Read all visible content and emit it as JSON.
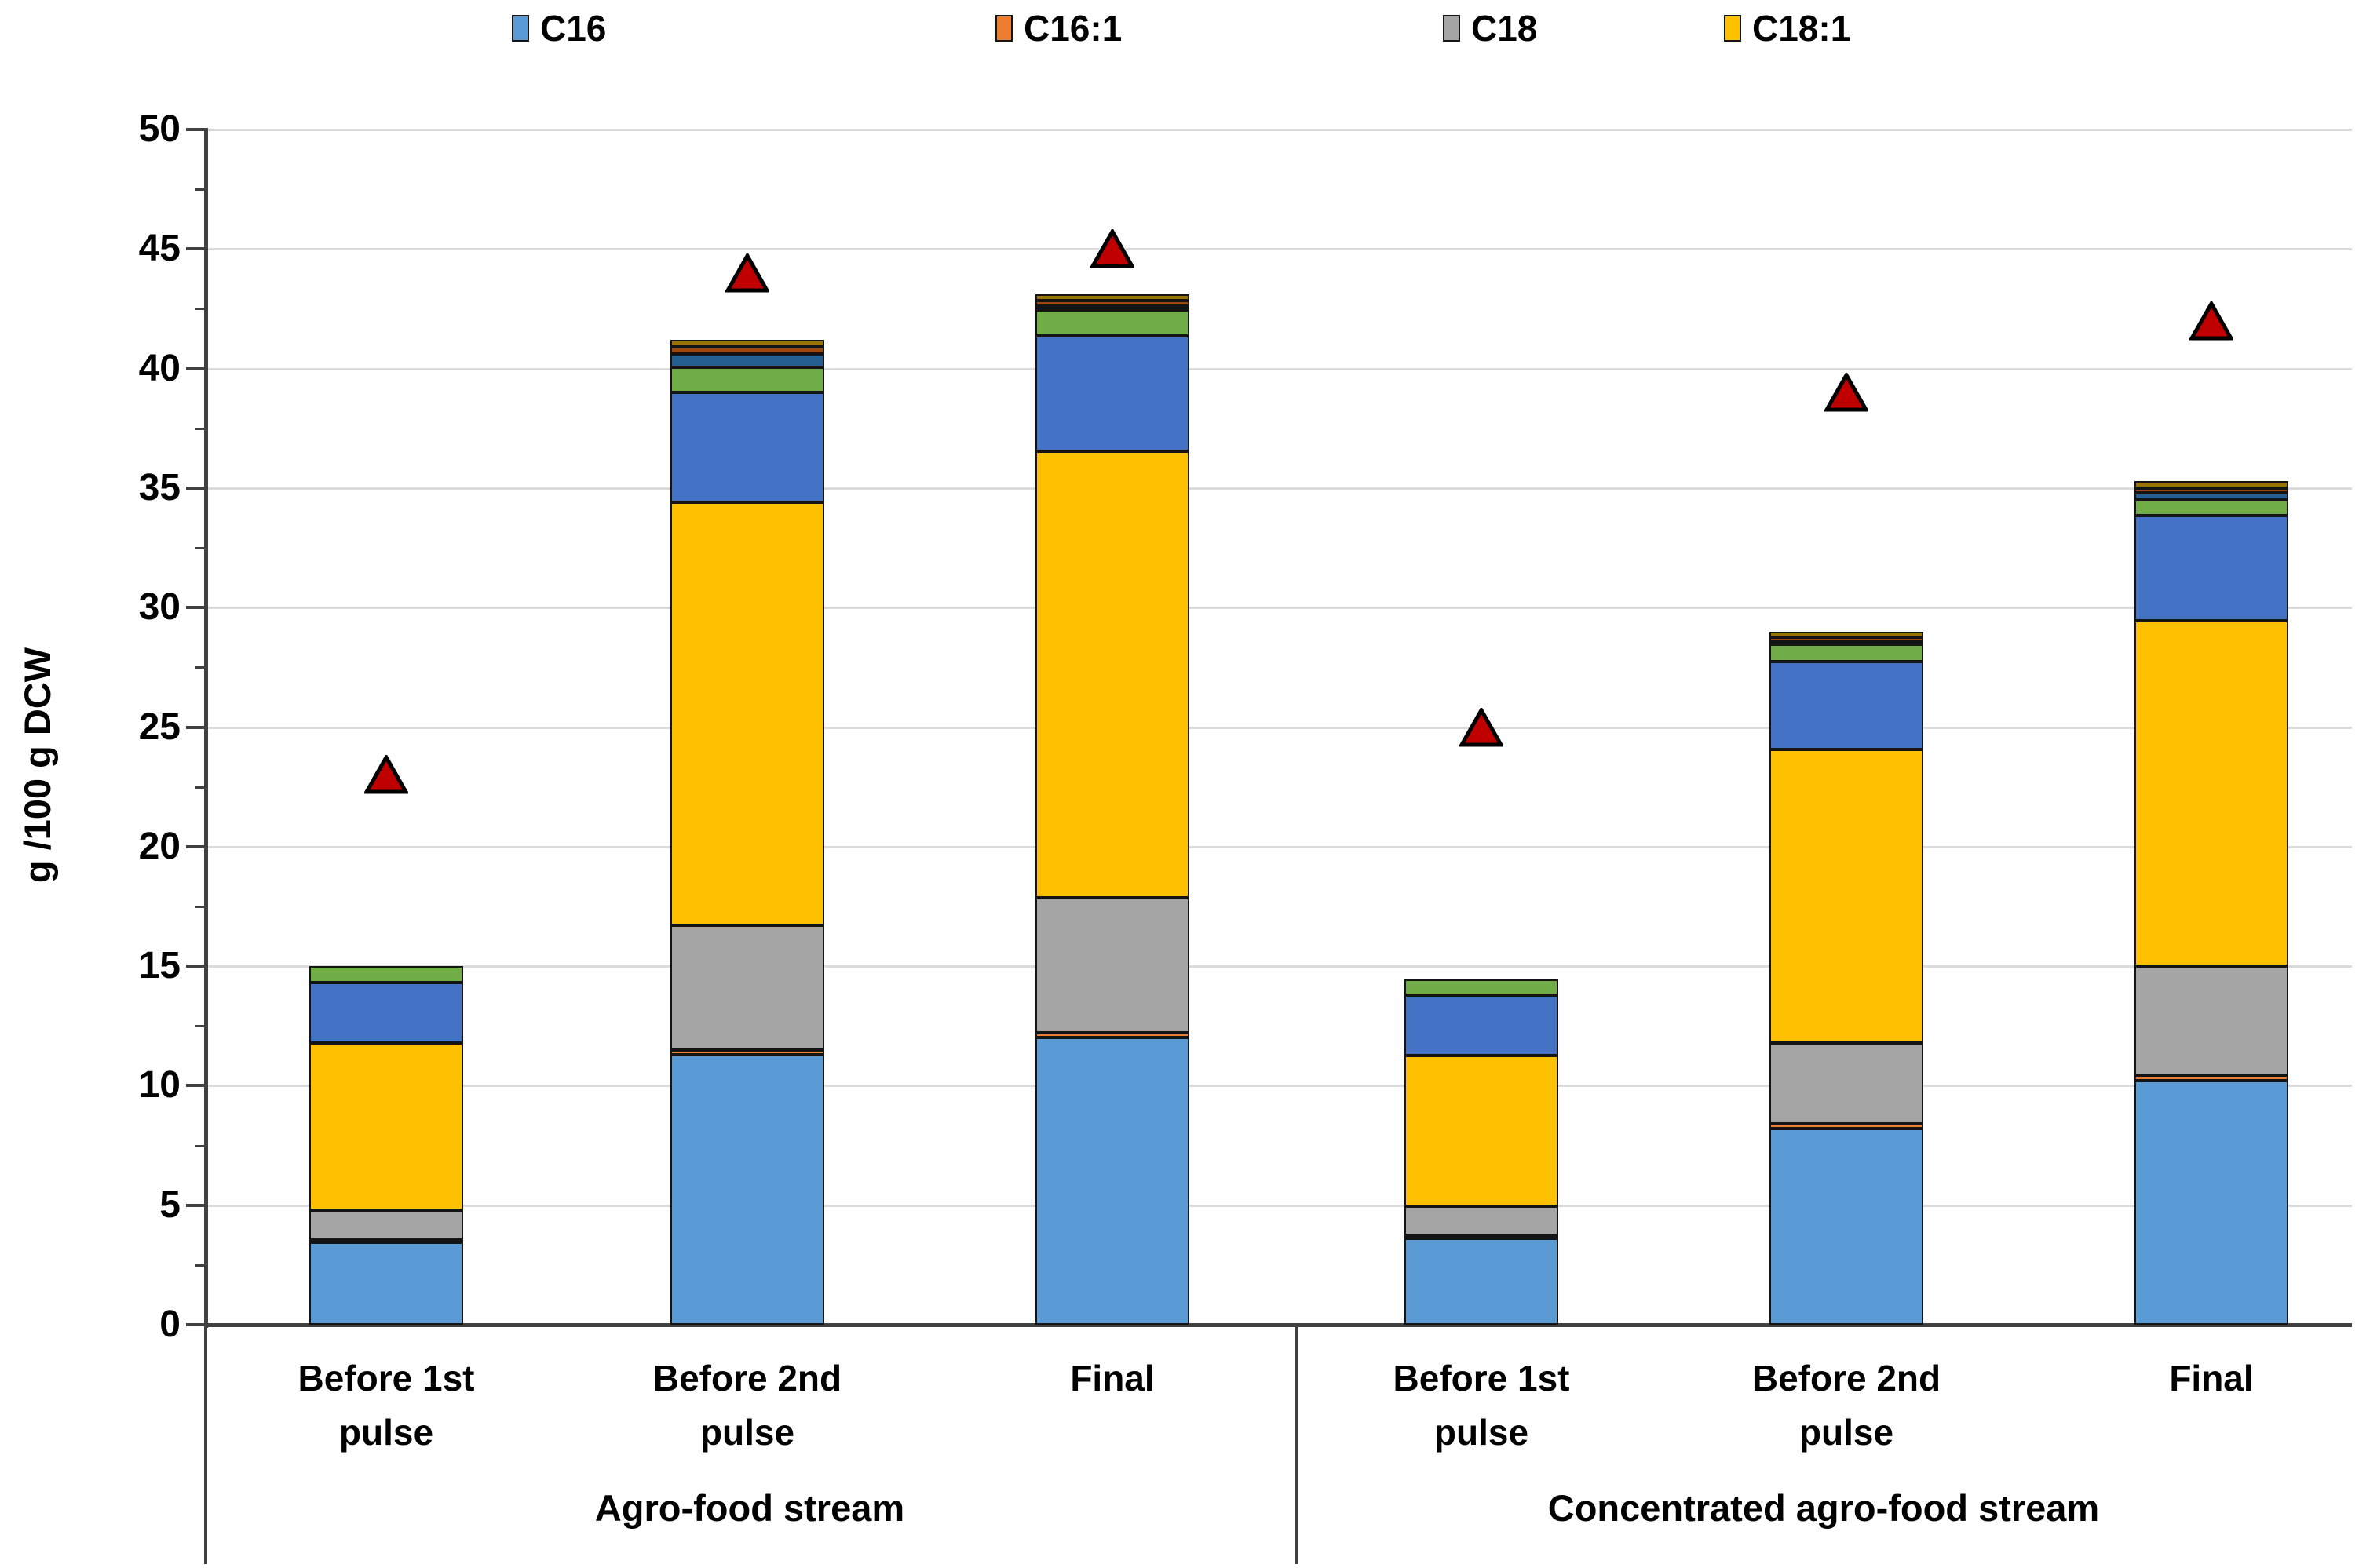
{
  "chart_data": {
    "type": "bar",
    "subtype": "stacked-columns-with-triangle-markers",
    "title": "",
    "y_axis": {
      "title": "g /100 g DCW",
      "min": 0,
      "max": 50,
      "major_step": 5,
      "minor_step": 2.5,
      "tick_labels": [
        "0",
        "5",
        "10",
        "15",
        "20",
        "25",
        "30",
        "35",
        "40",
        "45",
        "50"
      ],
      "gridlines": true
    },
    "groups": [
      {
        "label": "Agro-food stream",
        "categories": [
          "Before 1st pulse",
          "Before 2nd pulse",
          "Final"
        ]
      },
      {
        "label": "Concentrated agro-food stream",
        "categories": [
          "Before 1st pulse",
          "Before 2nd pulse",
          "Final"
        ]
      }
    ],
    "legend": {
      "position": "top",
      "items": [
        {
          "label": "C16",
          "color": "#5B9BD5"
        },
        {
          "label": "C16:1",
          "color": "#ED7D31"
        },
        {
          "label": "C18",
          "color": "#A5A5A5"
        },
        {
          "label": "C18:1",
          "color": "#FFC000"
        }
      ]
    },
    "bar_order": [
      "Agro-food / Before 1st pulse",
      "Agro-food / Before 2nd pulse",
      "Agro-food / Final",
      "Concentrated / Before 1st pulse",
      "Concentrated / Before 2nd pulse",
      "Concentrated / Final"
    ],
    "series": [
      {
        "label": "C16",
        "color": "#5B9BD5",
        "in_legend": true,
        "values": [
          3.45,
          11.3,
          12.0,
          3.6,
          8.2,
          10.2
        ]
      },
      {
        "label": "C16:1",
        "color": "#ED7D31",
        "in_legend": true,
        "values": [
          0.1,
          0.2,
          0.2,
          0.15,
          0.2,
          0.25
        ]
      },
      {
        "label": "C18",
        "color": "#A5A5A5",
        "in_legend": true,
        "values": [
          1.25,
          5.2,
          5.65,
          1.2,
          3.4,
          4.55
        ]
      },
      {
        "label": "C18:1",
        "color": "#FFC000",
        "in_legend": true,
        "values": [
          7.0,
          17.7,
          18.7,
          6.3,
          12.25,
          14.45
        ]
      },
      {
        "label": null,
        "color": "#4472C4",
        "in_legend": false,
        "values": [
          2.5,
          4.6,
          4.8,
          2.55,
          3.7,
          4.4
        ]
      },
      {
        "label": null,
        "color": "#70AD47",
        "in_legend": false,
        "values": [
          0.7,
          1.05,
          1.1,
          0.65,
          0.7,
          0.65
        ]
      },
      {
        "label": null,
        "color": "#255E91",
        "in_legend": false,
        "values": [
          0.0,
          0.55,
          0.15,
          0.0,
          0.1,
          0.3
        ]
      },
      {
        "label": null,
        "color": "#9E480E",
        "in_legend": false,
        "values": [
          0.0,
          0.3,
          0.25,
          0.0,
          0.2,
          0.2
        ]
      },
      {
        "label": null,
        "color": "#997300",
        "in_legend": false,
        "values": [
          0.0,
          0.3,
          0.25,
          0.0,
          0.25,
          0.3
        ]
      }
    ],
    "bar_totals": [
      15.0,
      41.2,
      43.1,
      14.45,
      29.0,
      35.3
    ],
    "markers": {
      "shape": "triangle-up",
      "fill": "#C00000",
      "stroke": "#000000",
      "values": [
        23,
        44,
        45,
        25,
        39,
        42
      ]
    }
  },
  "colors": {
    "background": "#FFFFFF",
    "axis": "#404040",
    "gridline": "#DBDBDB",
    "segment_border": "#141414",
    "text": "#000000"
  }
}
